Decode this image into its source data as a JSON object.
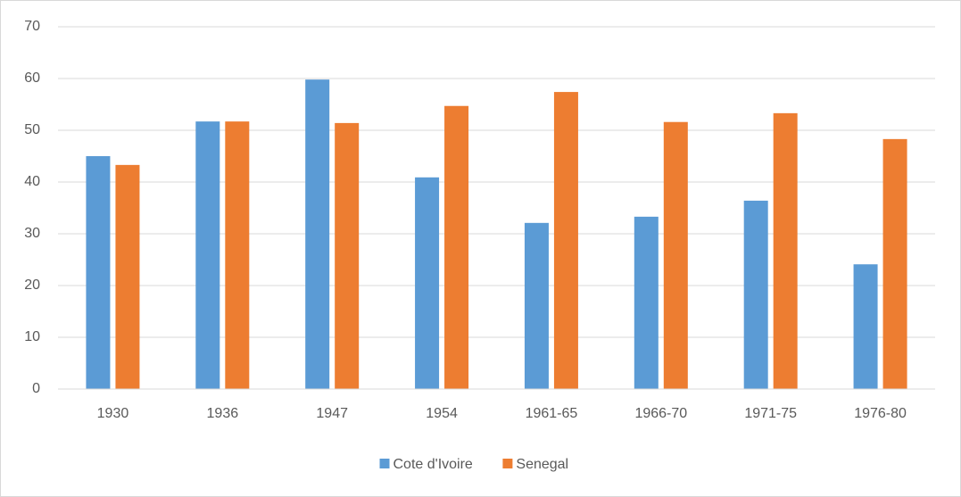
{
  "chart_data": {
    "type": "bar",
    "categories": [
      "1930",
      "1936",
      "1947",
      "1954",
      "1961-65",
      "1966-70",
      "1971-75",
      "1976-80"
    ],
    "series": [
      {
        "name": "Cote d'Ivoire",
        "color": "#5b9bd5",
        "values": [
          45,
          51.7,
          59.8,
          40.9,
          32.1,
          33.3,
          36.4,
          24.1
        ]
      },
      {
        "name": "Senegal",
        "color": "#ed7d31",
        "values": [
          43.3,
          51.7,
          51.4,
          54.7,
          57.4,
          51.6,
          53.3,
          48.3
        ]
      }
    ],
    "ylim": [
      0,
      70
    ],
    "yticks": [
      0,
      10,
      20,
      30,
      40,
      50,
      60,
      70
    ],
    "grid": true,
    "legend": "bottom"
  }
}
